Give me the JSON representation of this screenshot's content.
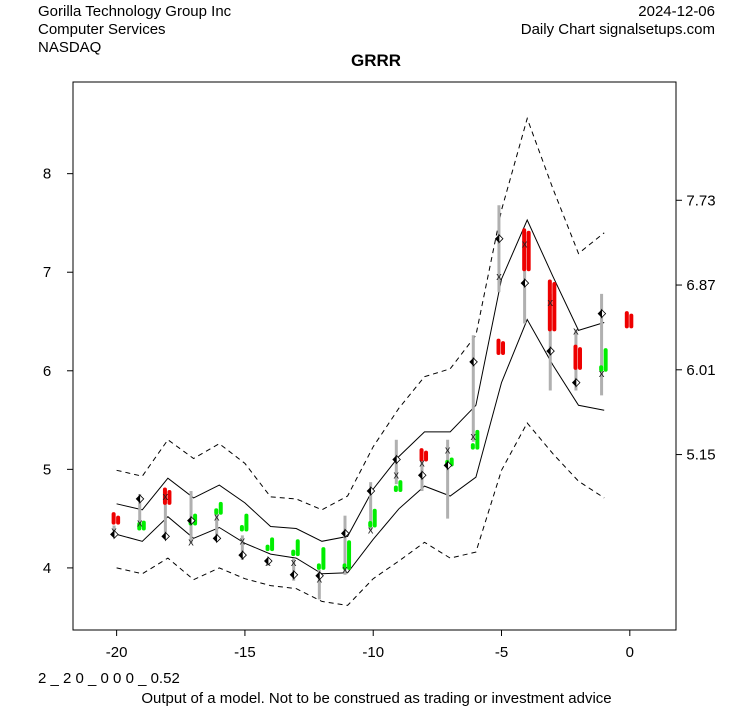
{
  "header": {
    "company": "Gorilla Technology Group Inc",
    "sector": "Computer Services",
    "exchange": "NASDAQ",
    "date": "2024-12-06",
    "source": "Daily Chart signalsetups.com"
  },
  "footer": {
    "code": "2 _ 2 0 _ 0 0 0 _ 0.52",
    "disclaimer": "Output of a model. Not to be construed as trading or investment advice"
  },
  "chart_data": {
    "type": "line",
    "title": "GRRR",
    "xlim": [
      -21.7,
      1.8
    ],
    "ylim": [
      3.37,
      8.93
    ],
    "x_ticks": [
      -20,
      -15,
      -10,
      -5,
      0
    ],
    "x_tick_labels": [
      "-20",
      "-15",
      "-10",
      "-5",
      "0"
    ],
    "y_ticks_left": [
      4,
      5,
      6,
      7,
      8
    ],
    "y_tick_labels_left": [
      "4",
      "5",
      "6",
      "7",
      "8"
    ],
    "y_ticks_right": [
      5.15,
      6.01,
      6.87,
      7.73
    ],
    "y_tick_labels_right": [
      "5.15",
      "6.01",
      "6.87",
      "7.73"
    ],
    "colors": {
      "up": "#00ee00",
      "down": "#ee0000",
      "range": "#b0b0b0",
      "band": "#000000"
    },
    "bars": [
      {
        "x": -20,
        "open": 4.52,
        "close": 4.47,
        "high": 4.5,
        "low": 4.47
      },
      {
        "x": -19,
        "open": 4.42,
        "close": 4.46,
        "high": 4.46,
        "low": 4.4
      },
      {
        "x": -18,
        "open": 4.77,
        "close": 4.66,
        "high": 4.77,
        "low": 4.66
      },
      {
        "x": -17,
        "open": 4.45,
        "close": 4.53,
        "high": 4.53,
        "low": 4.45
      },
      {
        "x": -16,
        "open": 4.56,
        "close": 4.65,
        "high": 4.65,
        "low": 4.56
      },
      {
        "x": -15,
        "open": 4.39,
        "close": 4.53,
        "high": 4.53,
        "low": 4.39
      },
      {
        "x": -14,
        "open": 4.19,
        "close": 4.29,
        "high": 4.29,
        "low": 4.19
      },
      {
        "x": -13,
        "open": 4.14,
        "close": 4.27,
        "high": 4.27,
        "low": 4.14
      },
      {
        "x": -12,
        "open": 4.0,
        "close": 4.19,
        "high": 4.19,
        "low": 4.0
      },
      {
        "x": -11,
        "open": 4.0,
        "close": 4.26,
        "high": 4.26,
        "low": 4.0
      },
      {
        "x": -10,
        "open": 4.43,
        "close": 4.58,
        "high": 4.58,
        "low": 4.43
      },
      {
        "x": -9,
        "open": 4.79,
        "close": 4.87,
        "high": 4.87,
        "low": 4.79
      },
      {
        "x": -8,
        "open": 5.17,
        "close": 5.1,
        "high": 5.17,
        "low": 5.1
      },
      {
        "x": -7,
        "open": 5.05,
        "close": 5.1,
        "high": 5.1,
        "low": 5.05
      },
      {
        "x": -6,
        "open": 5.22,
        "close": 5.38,
        "high": 5.38,
        "low": 5.22
      },
      {
        "x": -5,
        "open": 6.28,
        "close": 6.18,
        "high": 6.28,
        "low": 6.18
      },
      {
        "x": -4,
        "open": 7.4,
        "close": 7.03,
        "high": 7.4,
        "low": 7.03
      },
      {
        "x": -3,
        "open": 6.88,
        "close": 6.42,
        "high": 6.88,
        "low": 6.42
      },
      {
        "x": -2,
        "open": 6.22,
        "close": 6.03,
        "high": 6.22,
        "low": 6.03
      },
      {
        "x": -1,
        "open": 6.01,
        "close": 6.21,
        "high": 6.21,
        "low": 6.01
      },
      {
        "x": 0,
        "open": 6.56,
        "close": 6.45,
        "high": 6.56,
        "low": 6.45
      }
    ],
    "ranges": [
      {
        "x": -20.1,
        "low": 4.37,
        "high": 4.43
      },
      {
        "x": -19.1,
        "low": 4.45,
        "high": 4.75
      },
      {
        "x": -18.1,
        "low": 4.3,
        "high": 4.74
      },
      {
        "x": -17.1,
        "low": 4.25,
        "high": 4.78
      },
      {
        "x": -16.1,
        "low": 4.27,
        "high": 4.55
      },
      {
        "x": -15.1,
        "low": 4.08,
        "high": 4.33
      },
      {
        "x": -14.1,
        "low": 4.04,
        "high": 4.1
      },
      {
        "x": -13.1,
        "low": 3.87,
        "high": 4.1
      },
      {
        "x": -12.1,
        "low": 3.68,
        "high": 3.98
      },
      {
        "x": -11.1,
        "low": 3.93,
        "high": 4.53
      },
      {
        "x": -10.1,
        "low": 4.38,
        "high": 4.87
      },
      {
        "x": -9.1,
        "low": 4.85,
        "high": 5.3
      },
      {
        "x": -8.1,
        "low": 4.78,
        "high": 5.15
      },
      {
        "x": -7.1,
        "low": 4.5,
        "high": 5.3
      },
      {
        "x": -6.1,
        "low": 5.28,
        "high": 6.36
      },
      {
        "x": -5.1,
        "low": 6.8,
        "high": 7.68
      },
      {
        "x": -4.1,
        "low": 6.48,
        "high": 7.41
      },
      {
        "x": -3.1,
        "low": 5.8,
        "high": 6.78
      },
      {
        "x": -2.1,
        "low": 5.8,
        "high": 6.42
      },
      {
        "x": -1.1,
        "low": 5.75,
        "high": 6.78
      }
    ],
    "x_markers": [
      {
        "x": -20.1,
        "y": 4.38
      },
      {
        "x": -19.1,
        "y": 4.46
      },
      {
        "x": -18.1,
        "y": 4.73
      },
      {
        "x": -17.1,
        "y": 4.27
      },
      {
        "x": -16.1,
        "y": 4.52
      },
      {
        "x": -15.1,
        "y": 4.28
      },
      {
        "x": -14.1,
        "y": 4.06
      },
      {
        "x": -13.1,
        "y": 4.06
      },
      {
        "x": -12.1,
        "y": 3.89
      },
      {
        "x": -11.1,
        "y": 3.99
      },
      {
        "x": -10.1,
        "y": 4.39
      },
      {
        "x": -9.1,
        "y": 4.95
      },
      {
        "x": -8.1,
        "y": 5.07
      },
      {
        "x": -7.1,
        "y": 5.2
      },
      {
        "x": -6.1,
        "y": 5.34
      },
      {
        "x": -5.1,
        "y": 6.96
      },
      {
        "x": -4.1,
        "y": 7.29
      },
      {
        "x": -3.1,
        "y": 6.7
      },
      {
        "x": -2.1,
        "y": 6.41
      },
      {
        "x": -1.1,
        "y": 5.98
      }
    ],
    "diamonds": [
      {
        "x": -20.1,
        "y": 4.34
      },
      {
        "x": -19.1,
        "y": 4.7
      },
      {
        "x": -18.1,
        "y": 4.32
      },
      {
        "x": -17.1,
        "y": 4.48
      },
      {
        "x": -16.1,
        "y": 4.3
      },
      {
        "x": -15.1,
        "y": 4.13
      },
      {
        "x": -14.1,
        "y": 4.07
      },
      {
        "x": -13.1,
        "y": 3.93
      },
      {
        "x": -12.1,
        "y": 3.92
      },
      {
        "x": -11.1,
        "y": 4.35
      },
      {
        "x": -10.1,
        "y": 4.78
      },
      {
        "x": -9.1,
        "y": 5.1
      },
      {
        "x": -8.1,
        "y": 4.94
      },
      {
        "x": -7.1,
        "y": 5.04
      },
      {
        "x": -6.1,
        "y": 6.09
      },
      {
        "x": -5.1,
        "y": 7.34
      },
      {
        "x": -4.1,
        "y": 6.89
      },
      {
        "x": -3.1,
        "y": 6.2
      },
      {
        "x": -2.1,
        "y": 5.88
      },
      {
        "x": -1.1,
        "y": 6.58
      }
    ],
    "series": [
      {
        "name": "upper-outer",
        "style": "dashed",
        "x": [
          -20,
          -19,
          -18,
          -17,
          -16,
          -15,
          -14,
          -13,
          -12,
          -11,
          -10,
          -9,
          -8,
          -7,
          -6,
          -5,
          -4,
          -3,
          -2,
          -1
        ],
        "values": [
          4.99,
          4.93,
          5.3,
          5.11,
          5.26,
          5.06,
          4.72,
          4.7,
          4.59,
          4.73,
          5.23,
          5.62,
          5.94,
          6.02,
          6.36,
          7.63,
          8.56,
          7.85,
          7.19,
          7.4
        ]
      },
      {
        "name": "upper-inner",
        "style": "solid",
        "x": [
          -20,
          -19,
          -18,
          -17,
          -16,
          -15,
          -14,
          -13,
          -12,
          -11,
          -10,
          -9,
          -8,
          -7,
          -6,
          -5,
          -4,
          -3,
          -2,
          -1
        ],
        "values": [
          4.65,
          4.59,
          4.91,
          4.71,
          4.84,
          4.66,
          4.42,
          4.4,
          4.27,
          4.32,
          4.8,
          5.13,
          5.38,
          5.38,
          5.65,
          6.93,
          7.53,
          6.96,
          6.41,
          6.49
        ]
      },
      {
        "name": "lower-inner",
        "style": "solid",
        "x": [
          -20,
          -19,
          -18,
          -17,
          -16,
          -15,
          -14,
          -13,
          -12,
          -11,
          -10,
          -9,
          -8,
          -7,
          -6,
          -5,
          -4,
          -3,
          -2,
          -1
        ],
        "values": [
          4.34,
          4.27,
          4.52,
          4.3,
          4.41,
          4.25,
          4.14,
          4.1,
          3.94,
          3.95,
          4.29,
          4.6,
          4.83,
          4.73,
          4.92,
          5.88,
          6.52,
          6.06,
          5.65,
          5.6
        ]
      },
      {
        "name": "lower-outer",
        "style": "dashed",
        "x": [
          -20,
          -19,
          -18,
          -17,
          -16,
          -15,
          -14,
          -13,
          -12,
          -11,
          -10,
          -9,
          -8,
          -7,
          -6,
          -5,
          -4,
          -3,
          -2,
          -1
        ],
        "values": [
          4.0,
          3.94,
          4.1,
          3.88,
          4.0,
          3.89,
          3.82,
          3.79,
          3.66,
          3.62,
          3.89,
          4.07,
          4.26,
          4.1,
          4.16,
          4.99,
          5.47,
          5.16,
          4.88,
          4.71
        ]
      }
    ]
  }
}
